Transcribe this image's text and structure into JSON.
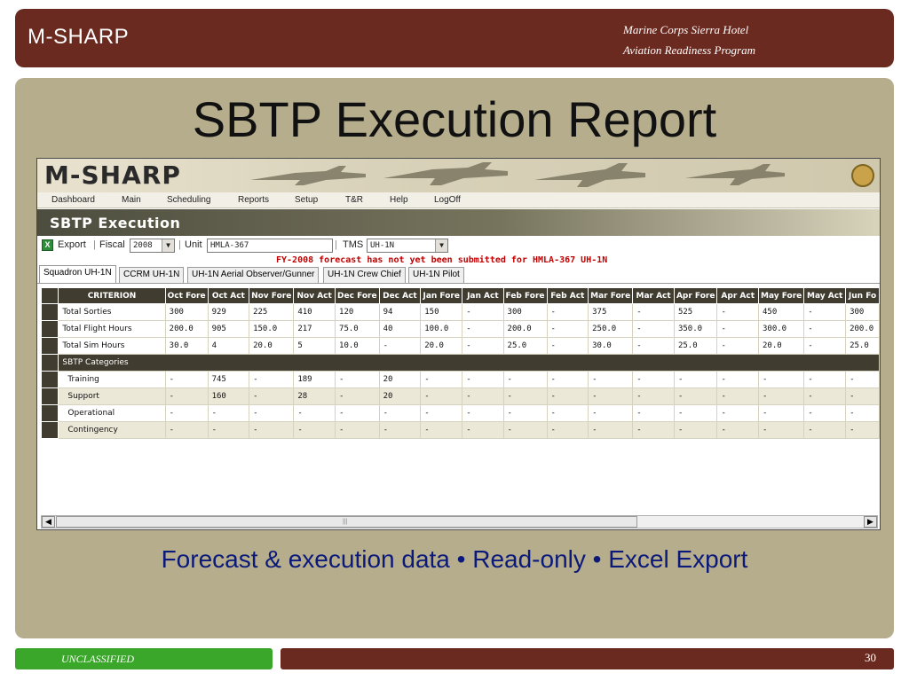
{
  "slide": {
    "brand": "M-SHARP",
    "subtitle_line1": "Marine Corps Sierra Hotel",
    "subtitle_line2": "Aviation Readiness Program",
    "title": "SBTP Execution Report",
    "caption": "Forecast & execution data • Read-only • Excel Export",
    "classification": "UNCLASSIFIED",
    "page_number": "30"
  },
  "app": {
    "logo": "M-SHARP",
    "menu": [
      "Dashboard",
      "Main",
      "Scheduling",
      "Reports",
      "Setup",
      "T&R",
      "Help",
      "LogOff"
    ],
    "section_title": "SBTP Execution",
    "toolbar": {
      "export_label": "Export",
      "fiscal_label": "Fiscal",
      "fiscal_value": "2008",
      "unit_label": "Unit",
      "unit_value": "HMLA-367",
      "tms_label": "TMS",
      "tms_value": "UH-1N"
    },
    "warning": "FY-2008 forecast has not yet been submitted for HMLA-367 UH-1N",
    "tabs": [
      "Squadron UH-1N",
      "CCRM UH-1N",
      "UH-1N Aerial Observer/Gunner",
      "UH-1N Crew Chief",
      "UH-1N Pilot"
    ],
    "active_tab": "Squadron UH-1N",
    "grid": {
      "columns": [
        "CRITERION",
        "Oct Fore",
        "Oct Act",
        "Nov Fore",
        "Nov Act",
        "Dec Fore",
        "Dec Act",
        "Jan Fore",
        "Jan Act",
        "Feb Fore",
        "Feb Act",
        "Mar Fore",
        "Mar Act",
        "Apr Fore",
        "Apr Act",
        "May Fore",
        "May Act",
        "Jun Fo"
      ],
      "rows": [
        {
          "label": "Total Sorties",
          "values": [
            "300",
            "929",
            "225",
            "410",
            "120",
            "94",
            "150",
            "-",
            "300",
            "-",
            "375",
            "-",
            "525",
            "-",
            "450",
            "-",
            "300"
          ]
        },
        {
          "label": "Total Flight Hours",
          "values": [
            "200.0",
            "905",
            "150.0",
            "217",
            "75.0",
            "40",
            "100.0",
            "-",
            "200.0",
            "-",
            "250.0",
            "-",
            "350.0",
            "-",
            "300.0",
            "-",
            "200.0"
          ]
        },
        {
          "label": "Total Sim Hours",
          "values": [
            "30.0",
            "4",
            "20.0",
            "5",
            "10.0",
            "-",
            "20.0",
            "-",
            "25.0",
            "-",
            "30.0",
            "-",
            "25.0",
            "-",
            "20.0",
            "-",
            "25.0"
          ]
        }
      ],
      "section_label": "SBTP Categories",
      "category_rows": [
        {
          "label": "Training",
          "values": [
            "-",
            "745",
            "-",
            "189",
            "-",
            "20",
            "-",
            "-",
            "-",
            "-",
            "-",
            "-",
            "-",
            "-",
            "-",
            "-",
            "-"
          ]
        },
        {
          "label": "Support",
          "values": [
            "-",
            "160",
            "-",
            "28",
            "-",
            "20",
            "-",
            "-",
            "-",
            "-",
            "-",
            "-",
            "-",
            "-",
            "-",
            "-",
            "-"
          ]
        },
        {
          "label": "Operational",
          "values": [
            "-",
            "-",
            "-",
            "-",
            "-",
            "-",
            "-",
            "-",
            "-",
            "-",
            "-",
            "-",
            "-",
            "-",
            "-",
            "-",
            "-"
          ]
        },
        {
          "label": "Contingency",
          "values": [
            "-",
            "-",
            "-",
            "-",
            "-",
            "-",
            "-",
            "-",
            "-",
            "-",
            "-",
            "-",
            "-",
            "-",
            "-",
            "-",
            "-"
          ]
        }
      ]
    }
  }
}
